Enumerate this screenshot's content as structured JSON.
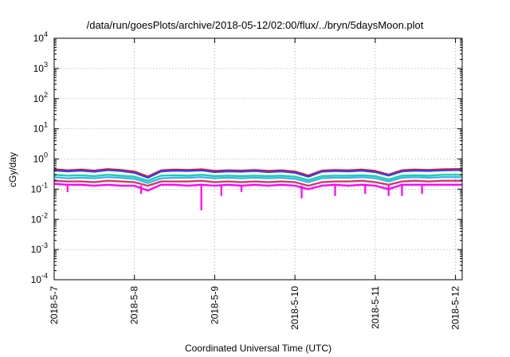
{
  "chart_data": {
    "type": "line",
    "title": "/data/run/goesPlots/archive/2018-05-12/02:00/flux/../bryn/5daysMoon.plot",
    "xlabel": "Coordinated Universal Time (UTC)",
    "ylabel": "cGy/day",
    "x_ticks": [
      "2018-5-7",
      "2018-5-8",
      "2018-5-9",
      "2018-5-10",
      "2018-5-11",
      "2018-5-12"
    ],
    "xlim": [
      "2018-05-07T00:00",
      "2018-05-12T02:00"
    ],
    "y_scale": "log",
    "ylim": [
      0.0001,
      10000
    ],
    "y_ticks": [
      {
        "base": "10",
        "exp": "-4",
        "value": 0.0001
      },
      {
        "base": "10",
        "exp": "-3",
        "value": 0.001
      },
      {
        "base": "10",
        "exp": "-2",
        "value": 0.01
      },
      {
        "base": "10",
        "exp": "-1",
        "value": 0.1
      },
      {
        "base": "10",
        "exp": "0",
        "value": 1
      },
      {
        "base": "10",
        "exp": "1",
        "value": 10
      },
      {
        "base": "10",
        "exp": "2",
        "value": 100
      },
      {
        "base": "10",
        "exp": "3",
        "value": 1000
      },
      {
        "base": "10",
        "exp": "4",
        "value": 10000
      }
    ],
    "grid": true,
    "x": [
      "2018-05-07T00:00",
      "2018-05-07T04:00",
      "2018-05-07T08:00",
      "2018-05-07T12:00",
      "2018-05-07T16:00",
      "2018-05-07T20:00",
      "2018-05-08T00:00",
      "2018-05-08T04:00",
      "2018-05-08T08:00",
      "2018-05-08T12:00",
      "2018-05-08T16:00",
      "2018-05-08T20:00",
      "2018-05-09T00:00",
      "2018-05-09T04:00",
      "2018-05-09T08:00",
      "2018-05-09T12:00",
      "2018-05-09T16:00",
      "2018-05-09T20:00",
      "2018-05-10T00:00",
      "2018-05-10T04:00",
      "2018-05-10T08:00",
      "2018-05-10T12:00",
      "2018-05-10T16:00",
      "2018-05-10T20:00",
      "2018-05-11T00:00",
      "2018-05-11T04:00",
      "2018-05-11T08:00",
      "2018-05-11T12:00",
      "2018-05-11T16:00",
      "2018-05-11T20:00",
      "2018-05-12T00:00",
      "2018-05-12T02:00"
    ],
    "series": [
      {
        "color": "#ff0000",
        "values": [
          0.45,
          0.42,
          0.44,
          0.41,
          0.46,
          0.43,
          0.38,
          0.26,
          0.42,
          0.44,
          0.43,
          0.45,
          0.4,
          0.42,
          0.41,
          0.43,
          0.4,
          0.42,
          0.38,
          0.28,
          0.41,
          0.43,
          0.42,
          0.44,
          0.4,
          0.3,
          0.42,
          0.44,
          0.43,
          0.45,
          0.46,
          0.46
        ]
      },
      {
        "color": "#3344ee",
        "values": [
          0.42,
          0.39,
          0.41,
          0.38,
          0.43,
          0.4,
          0.35,
          0.24,
          0.39,
          0.41,
          0.4,
          0.42,
          0.37,
          0.39,
          0.38,
          0.4,
          0.37,
          0.39,
          0.35,
          0.26,
          0.38,
          0.4,
          0.39,
          0.41,
          0.37,
          0.28,
          0.39,
          0.41,
          0.4,
          0.42,
          0.43,
          0.43
        ]
      },
      {
        "color": "#22ccaa",
        "values": [
          0.3,
          0.28,
          0.29,
          0.27,
          0.3,
          0.28,
          0.26,
          0.19,
          0.28,
          0.29,
          0.28,
          0.3,
          0.27,
          0.28,
          0.27,
          0.28,
          0.27,
          0.28,
          0.26,
          0.2,
          0.27,
          0.28,
          0.28,
          0.29,
          0.27,
          0.21,
          0.28,
          0.29,
          0.28,
          0.3,
          0.3,
          0.3
        ]
      },
      {
        "color": "#33bbee",
        "values": [
          0.25,
          0.23,
          0.24,
          0.23,
          0.25,
          0.24,
          0.22,
          0.16,
          0.23,
          0.24,
          0.24,
          0.25,
          0.23,
          0.24,
          0.23,
          0.24,
          0.23,
          0.24,
          0.22,
          0.17,
          0.23,
          0.24,
          0.24,
          0.25,
          0.23,
          0.18,
          0.24,
          0.25,
          0.24,
          0.25,
          0.25,
          0.25
        ]
      },
      {
        "color": "#dd3366",
        "values": [
          0.19,
          0.18,
          0.18,
          0.17,
          0.19,
          0.18,
          0.17,
          0.13,
          0.18,
          0.18,
          0.18,
          0.19,
          0.17,
          0.18,
          0.17,
          0.18,
          0.17,
          0.18,
          0.17,
          0.13,
          0.17,
          0.18,
          0.18,
          0.19,
          0.17,
          0.14,
          0.18,
          0.19,
          0.18,
          0.19,
          0.19,
          0.19
        ]
      },
      {
        "color": "#ff00ff",
        "values": [
          0.15,
          0.14,
          0.14,
          0.13,
          0.14,
          0.13,
          0.13,
          0.09,
          0.14,
          0.14,
          0.13,
          0.14,
          0.13,
          0.14,
          0.13,
          0.14,
          0.13,
          0.14,
          0.13,
          0.1,
          0.13,
          0.14,
          0.13,
          0.14,
          0.13,
          0.1,
          0.14,
          0.14,
          0.14,
          0.14,
          0.14,
          0.14
        ]
      }
    ],
    "dips": [
      {
        "x": "2018-05-07T04:00",
        "y": 0.08
      },
      {
        "x": "2018-05-08T02:00",
        "y": 0.07
      },
      {
        "x": "2018-05-08T20:00",
        "y": 0.02
      },
      {
        "x": "2018-05-09T02:00",
        "y": 0.06
      },
      {
        "x": "2018-05-09T08:00",
        "y": 0.08
      },
      {
        "x": "2018-05-10T02:00",
        "y": 0.05
      },
      {
        "x": "2018-05-10T12:00",
        "y": 0.06
      },
      {
        "x": "2018-05-10T21:00",
        "y": 0.07
      },
      {
        "x": "2018-05-11T04:00",
        "y": 0.06
      },
      {
        "x": "2018-05-11T08:00",
        "y": 0.06
      },
      {
        "x": "2018-05-11T14:00",
        "y": 0.07
      }
    ]
  }
}
